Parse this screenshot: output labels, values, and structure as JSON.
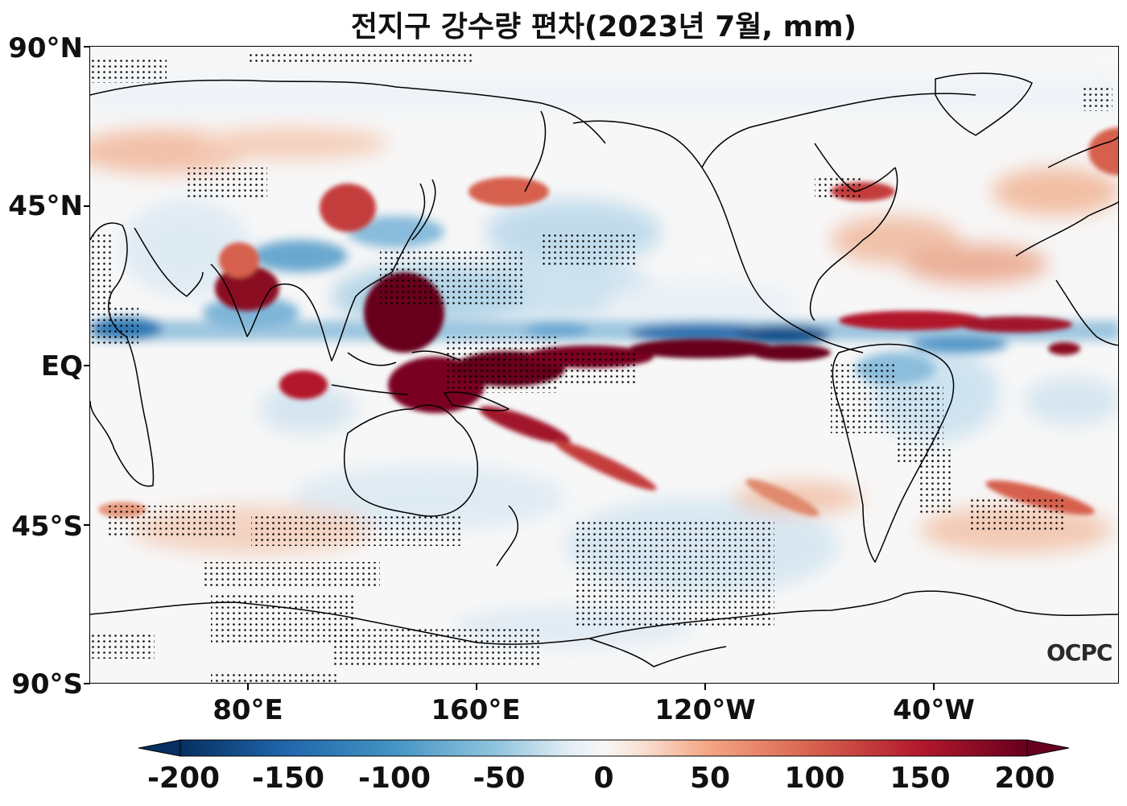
{
  "map": {
    "title": "전지구 강수량 편차(2023년 7월, mm)",
    "projection": "equirectangular, central longitude 200°E (160°W)",
    "variable": "Precipitation anomaly",
    "units": "mm",
    "period": "2023년 7월",
    "y_axis": {
      "ticks": [
        "90°N",
        "45°N",
        "EQ",
        "45°S",
        "90°S"
      ],
      "latitudes": [
        90,
        45,
        0,
        -45,
        -90
      ]
    },
    "x_axis": {
      "ticks": [
        "80°E",
        "160°E",
        "120°W",
        "40°W"
      ],
      "longitudes": [
        80,
        160,
        240,
        320
      ]
    },
    "colorbar": {
      "ticks": [
        "-200",
        "-150",
        "-100",
        "-50",
        "0",
        "50",
        "100",
        "150",
        "200"
      ],
      "min": -200,
      "max": 200,
      "colormap": "RdBu_r",
      "extend": "both",
      "colors": {
        "low": "#053061",
        "mid_low": "#4393c3",
        "neutral": "#f7f7f7",
        "mid_high": "#d6604d",
        "high": "#67001f"
      }
    },
    "significance_stipple": "dots mark statistically significant areas",
    "logo": "OCPC"
  }
}
